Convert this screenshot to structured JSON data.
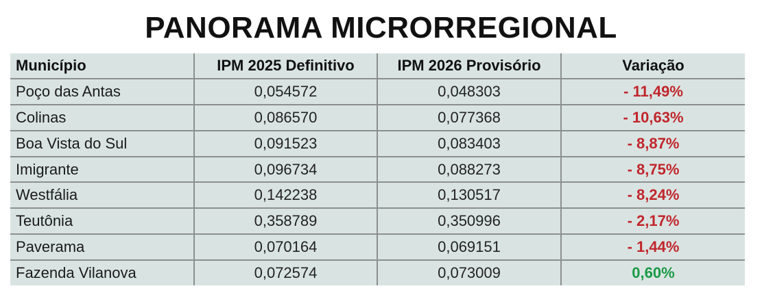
{
  "title": "PANORAMA MICRORREGIONAL",
  "colors": {
    "table_background": "#d9e4e2",
    "grid_line": "#8a8f8e",
    "negative": "#c1262c",
    "positive": "#1a9a46"
  },
  "chart_data": {
    "type": "table",
    "title": "PANORAMA MICRORREGIONAL",
    "columns": [
      "Município",
      "IPM 2025 Definitivo",
      "IPM 2026 Provisório",
      "Variação"
    ],
    "rows": [
      {
        "municipio": "Poço das Antas",
        "ipm2025": "0,054572",
        "ipm2026": "0,048303",
        "variacao": "- 11,49%",
        "sign": "neg"
      },
      {
        "municipio": "Colinas",
        "ipm2025": "0,086570",
        "ipm2026": "0,077368",
        "variacao": "- 10,63%",
        "sign": "neg"
      },
      {
        "municipio": "Boa Vista do Sul",
        "ipm2025": "0,091523",
        "ipm2026": "0,083403",
        "variacao": "- 8,87%",
        "sign": "neg"
      },
      {
        "municipio": "Imigrante",
        "ipm2025": "0,096734",
        "ipm2026": "0,088273",
        "variacao": "- 8,75%",
        "sign": "neg"
      },
      {
        "municipio": "Westfália",
        "ipm2025": "0,142238",
        "ipm2026": "0,130517",
        "variacao": "- 8,24%",
        "sign": "neg"
      },
      {
        "municipio": "Teutônia",
        "ipm2025": "0,358789",
        "ipm2026": "0,350996",
        "variacao": "- 2,17%",
        "sign": "neg"
      },
      {
        "municipio": "Paverama",
        "ipm2025": "0,070164",
        "ipm2026": "0,069151",
        "variacao": "- 1,44%",
        "sign": "neg"
      },
      {
        "municipio": "Fazenda Vilanova",
        "ipm2025": "0,072574",
        "ipm2026": "0,073009",
        "variacao": "0,60%",
        "sign": "pos"
      }
    ]
  }
}
